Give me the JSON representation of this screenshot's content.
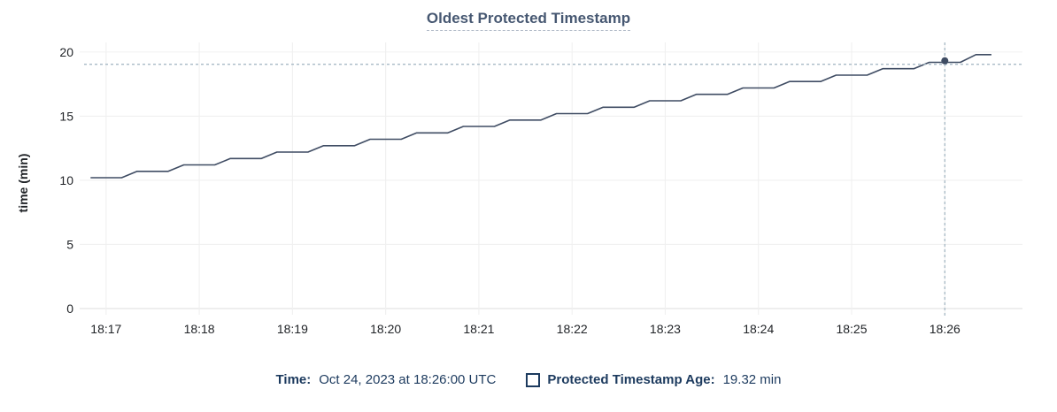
{
  "title": "Oldest Protected Timestamp",
  "colors": {
    "title_text": "#475872",
    "legend_text": "#1c3a5e",
    "series_line": "#3f4c63",
    "highlight_dot": "#3f4c63",
    "crosshair": "#9fb3c0",
    "gridline": "#f0f0f0",
    "axis_line": "#e3e3e3",
    "tick_label": "#1f2226"
  },
  "legend": {
    "time_label": "Time:",
    "time_value": "Oct 24, 2023 at 18:26:00 UTC",
    "series_label": "Protected Timestamp Age:",
    "series_value": "19.32 min"
  },
  "chart_data": {
    "type": "line",
    "title": "Oldest Protected Timestamp",
    "xlabel": "",
    "ylabel": "time (min)",
    "ylim": [
      0,
      20.75
    ],
    "y_ticks": [
      0,
      5,
      10,
      15,
      20
    ],
    "x_ticks": [
      "18:17",
      "18:18",
      "18:19",
      "18:20",
      "18:21",
      "18:22",
      "18:23",
      "18:24",
      "18:25",
      "18:26"
    ],
    "x_domain": [
      "18:16:43",
      "18:26:50"
    ],
    "grid": true,
    "legend_position": "bottom",
    "series": [
      {
        "name": "Protected Timestamp Age",
        "unit": "min",
        "points": [
          [
            "18:16:50",
            10.2
          ],
          [
            "18:17:10",
            10.2
          ],
          [
            "18:17:20",
            10.7
          ],
          [
            "18:17:40",
            10.7
          ],
          [
            "18:17:50",
            11.2
          ],
          [
            "18:18:10",
            11.2
          ],
          [
            "18:18:20",
            11.7
          ],
          [
            "18:18:40",
            11.7
          ],
          [
            "18:18:50",
            12.2
          ],
          [
            "18:19:10",
            12.2
          ],
          [
            "18:19:20",
            12.7
          ],
          [
            "18:19:40",
            12.7
          ],
          [
            "18:19:50",
            13.2
          ],
          [
            "18:20:10",
            13.2
          ],
          [
            "18:20:20",
            13.7
          ],
          [
            "18:20:40",
            13.7
          ],
          [
            "18:20:50",
            14.2
          ],
          [
            "18:21:10",
            14.2
          ],
          [
            "18:21:20",
            14.7
          ],
          [
            "18:21:40",
            14.7
          ],
          [
            "18:21:50",
            15.2
          ],
          [
            "18:22:10",
            15.2
          ],
          [
            "18:22:20",
            15.7
          ],
          [
            "18:22:40",
            15.7
          ],
          [
            "18:22:50",
            16.2
          ],
          [
            "18:23:10",
            16.2
          ],
          [
            "18:23:20",
            16.7
          ],
          [
            "18:23:40",
            16.7
          ],
          [
            "18:23:50",
            17.2
          ],
          [
            "18:24:10",
            17.2
          ],
          [
            "18:24:20",
            17.7
          ],
          [
            "18:24:40",
            17.7
          ],
          [
            "18:24:50",
            18.2
          ],
          [
            "18:25:10",
            18.2
          ],
          [
            "18:25:20",
            18.7
          ],
          [
            "18:25:40",
            18.7
          ],
          [
            "18:25:50",
            19.2
          ],
          [
            "18:26:10",
            19.2
          ],
          [
            "18:26:20",
            19.8
          ],
          [
            "18:26:30",
            19.8
          ]
        ]
      }
    ],
    "highlight": {
      "time": "18:26:00",
      "value": 19.32
    }
  }
}
